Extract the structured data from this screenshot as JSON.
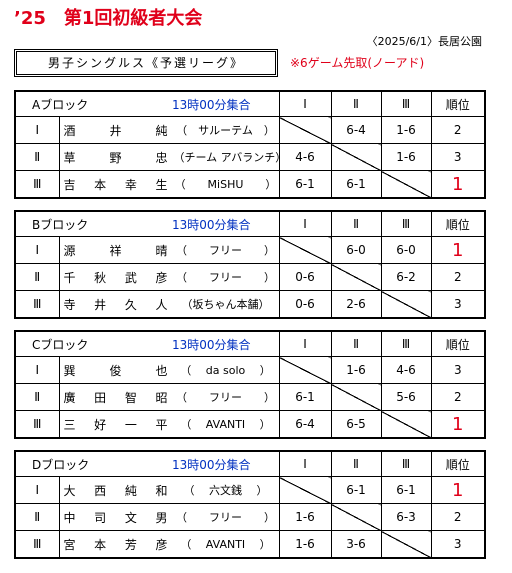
{
  "header": {
    "title": "’25　第1回初級者大会",
    "date": "〈2025/6/1〉長居公園"
  },
  "event": {
    "label": "男子シングルス《予選リーグ》",
    "rule": "※6ゲーム先取(ノーアド)"
  },
  "columns": [
    "Ⅰ",
    "Ⅱ",
    "Ⅲ",
    "順位"
  ],
  "blocks": [
    {
      "name": "Aブロック",
      "time": "13時00分集合",
      "rows": [
        {
          "no": "Ⅰ",
          "name": "酒　井　純",
          "club": "（　サルーテム　）",
          "scores": [
            null,
            "6-4",
            "1-6"
          ],
          "rank": 2
        },
        {
          "no": "Ⅱ",
          "name": "草　野　忠",
          "club": "（チーム アバランチ）",
          "scores": [
            "4-6",
            null,
            "1-6"
          ],
          "rank": 3
        },
        {
          "no": "Ⅲ",
          "name": "吉　本　幸　生",
          "club": "（　　MiSHU　　）",
          "scores": [
            "6-1",
            "6-1",
            null
          ],
          "rank": 1
        }
      ]
    },
    {
      "name": "Bブロック",
      "time": "13時00分集合",
      "rows": [
        {
          "no": "Ⅰ",
          "name": "源　祥　晴",
          "club": "（　　フリー　　）",
          "scores": [
            null,
            "6-0",
            "6-0"
          ],
          "rank": 1
        },
        {
          "no": "Ⅱ",
          "name": "千　秋　武　彦",
          "club": "（　　フリー　　）",
          "scores": [
            "0-6",
            null,
            "6-2"
          ],
          "rank": 2
        },
        {
          "no": "Ⅲ",
          "name": "寺　井　久　人",
          "club": "（坂ちゃん本舗）",
          "scores": [
            "0-6",
            "2-6",
            null
          ],
          "rank": 3
        }
      ]
    },
    {
      "name": "Cブロック",
      "time": "13時00分集合",
      "rows": [
        {
          "no": "Ⅰ",
          "name": "巽　俊　也",
          "club": "（　 da solo 　）",
          "scores": [
            null,
            "1-6",
            "4-6"
          ],
          "rank": 3
        },
        {
          "no": "Ⅱ",
          "name": "廣　田　智　昭",
          "club": "（　　フリー　　）",
          "scores": [
            "6-1",
            null,
            "5-6"
          ],
          "rank": 2
        },
        {
          "no": "Ⅲ",
          "name": "三　好　一　平",
          "club": "（　 AVANTI 　）",
          "scores": [
            "6-4",
            "6-5",
            null
          ],
          "rank": 1
        }
      ]
    },
    {
      "name": "Dブロック",
      "time": "13時00分集合",
      "rows": [
        {
          "no": "Ⅰ",
          "name": "大　西　純　和",
          "club": "（　 六文銭 　）",
          "scores": [
            null,
            "6-1",
            "6-1"
          ],
          "rank": 1
        },
        {
          "no": "Ⅱ",
          "name": "中　司　文　男",
          "club": "（　　フリー　　）",
          "scores": [
            "1-6",
            null,
            "6-3"
          ],
          "rank": 2
        },
        {
          "no": "Ⅲ",
          "name": "宮　本　芳　彦",
          "club": "（　 AVANTI 　）",
          "scores": [
            "1-6",
            "3-6",
            null
          ],
          "rank": 3
        }
      ]
    }
  ]
}
